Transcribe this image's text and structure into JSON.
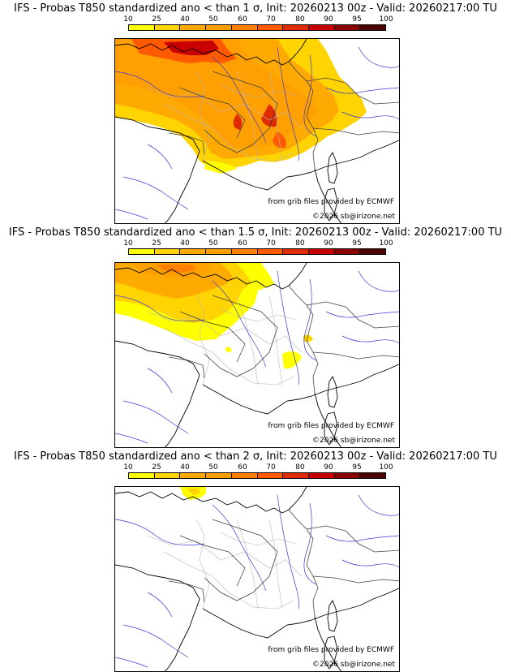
{
  "legend": {
    "ticks": [
      "10",
      "25",
      "40",
      "50",
      "60",
      "70",
      "80",
      "90",
      "95",
      "100"
    ],
    "colors": [
      "#ffff00",
      "#ffd400",
      "#ffaa00",
      "#ff9f00",
      "#ff8000",
      "#ff5a00",
      "#e02a00",
      "#c80000",
      "#8a0000",
      "#4d0000"
    ]
  },
  "panels": [
    {
      "title": "IFS - Probas T850  standardized ano < than 1 σ, Init: 20260213 00z - Valid: 20260217:00 TU",
      "sigma": "1",
      "coverage": "widespread"
    },
    {
      "title": "IFS - Probas T850  standardized ano < than 1.5 σ, Init: 20260213 00z - Valid: 20260217:00 TU",
      "sigma": "1.5",
      "coverage": "northwest"
    },
    {
      "title": "IFS - Probas T850  standardized ano < than 2 σ, Init: 20260213 00z - Valid: 20260217:00 TU",
      "sigma": "2",
      "coverage": "minimal"
    }
  ],
  "credits": {
    "provider": "from grib files provided by ECMWF",
    "copyright": "©2026 sb@irizone.net"
  }
}
